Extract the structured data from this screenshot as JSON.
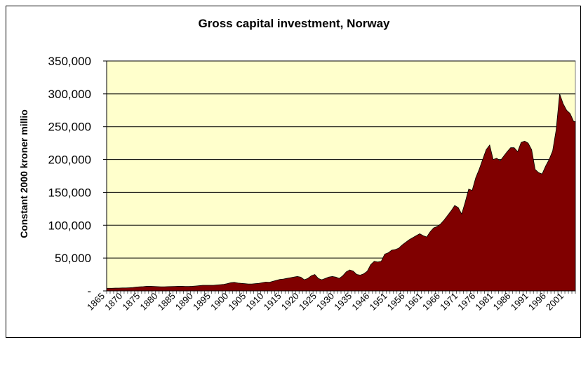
{
  "chart_data": {
    "type": "area",
    "title": "Gross capital investment, Norway",
    "xlabel": "",
    "ylabel": "Constant 2000 kroner millio",
    "ylim": [
      0,
      350000
    ],
    "yticks": [
      0,
      50000,
      100000,
      150000,
      200000,
      250000,
      300000,
      350000
    ],
    "ytick_labels": [
      "-",
      "50,000",
      "100,000",
      "150,000",
      "200,000",
      "250,000",
      "300,000",
      "350,000"
    ],
    "xtick_labels": [
      "1865",
      "1870",
      "1875",
      "1880",
      "1885",
      "1890",
      "1895",
      "1900",
      "1905",
      "1910",
      "1915",
      "1920",
      "1925",
      "1930",
      "1935",
      "1946",
      "1951",
      "1956",
      "1961",
      "1966",
      "1971",
      "1976",
      "1981",
      "1986",
      "1991",
      "1996",
      "2001"
    ],
    "grid": true,
    "legend": "none",
    "plot_background": "#ffffcc",
    "fill_color": "#800000",
    "series": [
      {
        "x": [
          1865,
          1866,
          1867,
          1868,
          1869,
          1870,
          1871,
          1872,
          1873,
          1874,
          1875,
          1876,
          1877,
          1878,
          1879,
          1880,
          1881,
          1882,
          1883,
          1884,
          1885,
          1886,
          1887,
          1888,
          1889,
          1890,
          1891,
          1892,
          1893,
          1894,
          1895,
          1896,
          1897,
          1898,
          1899,
          1900,
          1901,
          1902,
          1903,
          1904,
          1905,
          1906,
          1907,
          1908,
          1909,
          1910,
          1911,
          1912,
          1913,
          1914,
          1915,
          1916,
          1917,
          1918,
          1919,
          1920,
          1921,
          1922,
          1923,
          1924,
          1925,
          1926,
          1927,
          1928,
          1929,
          1930,
          1931,
          1932,
          1933,
          1934,
          1935,
          1936,
          1937,
          1938,
          1939,
          1946,
          1947,
          1948,
          1949,
          1950,
          1951,
          1952,
          1953,
          1954,
          1955,
          1956,
          1957,
          1958,
          1959,
          1960,
          1961,
          1962,
          1963,
          1964,
          1965,
          1966,
          1967,
          1968,
          1969,
          1970,
          1971,
          1972,
          1973,
          1974,
          1975,
          1976,
          1977,
          1978,
          1979,
          1980,
          1981,
          1982,
          1983,
          1984,
          1985,
          1986,
          1987,
          1988,
          1989,
          1990,
          1991,
          1992,
          1993,
          1994,
          1995,
          1996,
          1997,
          1998,
          1999,
          2000,
          2001,
          2002,
          2003,
          2004
        ],
        "values": [
          4000,
          4000,
          4200,
          4300,
          4500,
          4500,
          4800,
          5200,
          5800,
          6200,
          6500,
          7000,
          7000,
          6800,
          6500,
          6300,
          6300,
          6500,
          6600,
          6800,
          7000,
          7000,
          6800,
          6800,
          7000,
          7500,
          8000,
          8500,
          8500,
          8500,
          8500,
          9000,
          9500,
          10000,
          11000,
          12500,
          13000,
          12000,
          11500,
          11000,
          10500,
          10500,
          11000,
          11500,
          12500,
          13500,
          13000,
          14500,
          16000,
          17500,
          18000,
          19000,
          20000,
          21000,
          22000,
          21000,
          17000,
          19000,
          23000,
          25000,
          19000,
          17000,
          19000,
          21000,
          22000,
          21000,
          19000,
          23000,
          29000,
          32000,
          30000,
          25000,
          24000,
          26000,
          30000,
          40000,
          45000,
          44000,
          45000,
          56000,
          58000,
          62000,
          63000,
          65000,
          70000,
          74000,
          78000,
          81000,
          84000,
          87000,
          84000,
          82000,
          90000,
          96000,
          98000,
          102000,
          108000,
          115000,
          122000,
          130000,
          127000,
          117000,
          135000,
          155000,
          153000,
          172000,
          185000,
          200000,
          215000,
          222000,
          200000,
          202000,
          198000,
          205000,
          212000,
          218000,
          218000,
          212000,
          226000,
          228000,
          225000,
          215000,
          185000,
          180000,
          178000,
          190000,
          200000,
          213000,
          245000,
          300000,
          285000,
          275000,
          270000,
          258000
        ]
      }
    ]
  }
}
